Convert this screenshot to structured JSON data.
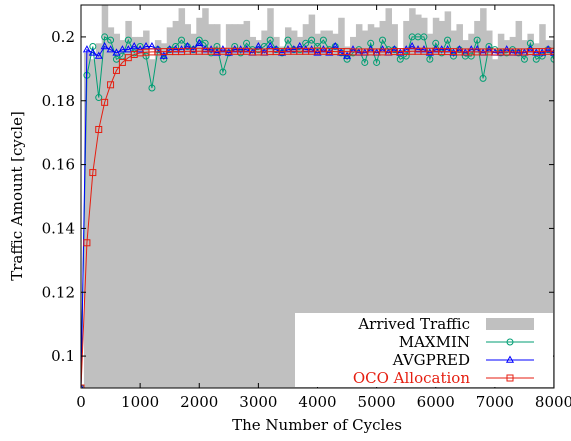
{
  "chart_data": {
    "type": "line",
    "xlabel": "The Number of Cycles",
    "ylabel": "Traffic Amount [cycle]",
    "xlim": [
      0,
      8000
    ],
    "ylim": [
      0.09,
      0.21
    ],
    "x_ticks": [
      0,
      1000,
      2000,
      3000,
      4000,
      5000,
      6000,
      7000,
      8000
    ],
    "y_ticks": [
      0.1,
      0.12,
      0.14,
      0.16,
      0.18,
      0.2
    ],
    "legend_position": "bottom-right",
    "colors": {
      "arrived": "#c0c0c0",
      "maxmin": "#009e73",
      "avgpred": "#0000ff",
      "oco": "#e51e10"
    },
    "series": [
      {
        "name": "Arrived Traffic",
        "style": "bar",
        "x": [
          0,
          100,
          200,
          300,
          400,
          500,
          600,
          700,
          800,
          900,
          1000,
          1100,
          1200,
          1300,
          1400,
          1500,
          1600,
          1700,
          1800,
          1900,
          2000,
          2100,
          2200,
          2300,
          2400,
          2500,
          2600,
          2700,
          2800,
          2900,
          3000,
          3100,
          3200,
          3300,
          3400,
          3500,
          3600,
          3700,
          3800,
          3900,
          4000,
          4100,
          4200,
          4300,
          4400,
          4500,
          4600,
          4700,
          4800,
          4900,
          5000,
          5100,
          5200,
          5300,
          5400,
          5500,
          5600,
          5700,
          5800,
          5900,
          6000,
          6100,
          6200,
          6300,
          6400,
          6500,
          6600,
          6700,
          6800,
          6900,
          7000,
          7100,
          7200,
          7300,
          7400,
          7500,
          7600,
          7700,
          7800,
          7900,
          8000
        ],
        "values": [
          0.09,
          0.195,
          0.193,
          0.198,
          0.21,
          0.203,
          0.201,
          0.199,
          0.205,
          0.2,
          0.2,
          0.202,
          0.193,
          0.199,
          0.198,
          0.203,
          0.205,
          0.209,
          0.204,
          0.201,
          0.206,
          0.209,
          0.204,
          0.204,
          0.196,
          0.204,
          0.204,
          0.204,
          0.205,
          0.2,
          0.199,
          0.202,
          0.209,
          0.2,
          0.197,
          0.203,
          0.202,
          0.2,
          0.204,
          0.207,
          0.201,
          0.202,
          0.202,
          0.201,
          0.206,
          0.197,
          0.2,
          0.204,
          0.202,
          0.204,
          0.203,
          0.205,
          0.209,
          0.204,
          0.196,
          0.205,
          0.209,
          0.207,
          0.206,
          0.201,
          0.206,
          0.205,
          0.208,
          0.202,
          0.204,
          0.199,
          0.201,
          0.205,
          0.209,
          0.202,
          0.193,
          0.201,
          0.199,
          0.2,
          0.205,
          0.199,
          0.201,
          0.198,
          0.204,
          0.199,
          0.199
        ]
      },
      {
        "name": "MAXMIN",
        "style": "line-circle",
        "x": [
          0,
          100,
          200,
          300,
          400,
          500,
          600,
          700,
          800,
          900,
          1000,
          1100,
          1200,
          1300,
          1400,
          1500,
          1600,
          1700,
          1800,
          1900,
          2000,
          2100,
          2200,
          2300,
          2400,
          2500,
          2600,
          2700,
          2800,
          2900,
          3000,
          3100,
          3200,
          3300,
          3400,
          3500,
          3600,
          3700,
          3800,
          3900,
          4000,
          4100,
          4200,
          4300,
          4400,
          4500,
          4600,
          4700,
          4800,
          4900,
          5000,
          5100,
          5200,
          5300,
          5400,
          5500,
          5600,
          5700,
          5800,
          5900,
          6000,
          6100,
          6200,
          6300,
          6400,
          6500,
          6600,
          6700,
          6800,
          6900,
          7000,
          7100,
          7200,
          7300,
          7400,
          7500,
          7600,
          7700,
          7800,
          7900,
          8000
        ],
        "values": [
          0.09,
          0.188,
          0.197,
          0.181,
          0.2,
          0.199,
          0.193,
          0.194,
          0.199,
          0.195,
          0.197,
          0.194,
          0.184,
          0.196,
          0.193,
          0.196,
          0.197,
          0.199,
          0.197,
          0.196,
          0.199,
          0.198,
          0.195,
          0.197,
          0.189,
          0.195,
          0.197,
          0.195,
          0.198,
          0.196,
          0.196,
          0.197,
          0.199,
          0.196,
          0.195,
          0.199,
          0.196,
          0.196,
          0.198,
          0.199,
          0.197,
          0.199,
          0.196,
          0.197,
          0.195,
          0.193,
          0.195,
          0.196,
          0.192,
          0.198,
          0.192,
          0.199,
          0.196,
          0.196,
          0.193,
          0.194,
          0.2,
          0.2,
          0.2,
          0.193,
          0.198,
          0.195,
          0.199,
          0.194,
          0.196,
          0.194,
          0.194,
          0.199,
          0.187,
          0.197,
          0.196,
          0.195,
          0.195,
          0.196,
          0.195,
          0.193,
          0.198,
          0.193,
          0.194,
          0.196,
          0.193
        ]
      },
      {
        "name": "AVGPRED",
        "style": "line-triangle",
        "x": [
          0,
          100,
          200,
          300,
          400,
          500,
          600,
          700,
          800,
          900,
          1000,
          1100,
          1200,
          1300,
          1400,
          1500,
          1600,
          1700,
          1800,
          1900,
          2000,
          2100,
          2200,
          2300,
          2400,
          2500,
          2600,
          2700,
          2800,
          2900,
          3000,
          3100,
          3200,
          3300,
          3400,
          3500,
          3600,
          3700,
          3800,
          3900,
          4000,
          4100,
          4200,
          4300,
          4400,
          4500,
          4600,
          4700,
          4800,
          4900,
          5000,
          5100,
          5200,
          5300,
          5400,
          5500,
          5600,
          5700,
          5800,
          5900,
          6000,
          6100,
          6200,
          6300,
          6400,
          6500,
          6600,
          6700,
          6800,
          6900,
          7000,
          7100,
          7200,
          7300,
          7400,
          7500,
          7600,
          7700,
          7800,
          7900,
          8000
        ],
        "values": [
          0.09,
          0.196,
          0.195,
          0.194,
          0.197,
          0.196,
          0.195,
          0.196,
          0.196,
          0.197,
          0.196,
          0.197,
          0.197,
          0.196,
          0.194,
          0.196,
          0.196,
          0.196,
          0.197,
          0.196,
          0.198,
          0.196,
          0.196,
          0.195,
          0.196,
          0.195,
          0.196,
          0.196,
          0.196,
          0.195,
          0.197,
          0.195,
          0.197,
          0.196,
          0.195,
          0.196,
          0.196,
          0.197,
          0.196,
          0.196,
          0.195,
          0.196,
          0.195,
          0.197,
          0.195,
          0.194,
          0.196,
          0.195,
          0.195,
          0.196,
          0.195,
          0.196,
          0.195,
          0.196,
          0.195,
          0.196,
          0.197,
          0.196,
          0.196,
          0.195,
          0.196,
          0.196,
          0.196,
          0.195,
          0.196,
          0.195,
          0.196,
          0.196,
          0.195,
          0.196,
          0.195,
          0.195,
          0.196,
          0.195,
          0.195,
          0.195,
          0.196,
          0.195,
          0.195,
          0.196,
          0.195
        ]
      },
      {
        "name": "OCO Allocation",
        "style": "line-square",
        "x": [
          0,
          100,
          200,
          300,
          400,
          500,
          600,
          700,
          800,
          900,
          1000,
          1100,
          1200,
          1300,
          1400,
          1500,
          1600,
          1700,
          1800,
          1900,
          2000,
          2100,
          2200,
          2300,
          2400,
          2500,
          2600,
          2700,
          2800,
          2900,
          3000,
          3100,
          3200,
          3300,
          3400,
          3500,
          3600,
          3700,
          3800,
          3900,
          4000,
          4100,
          4200,
          4300,
          4400,
          4500,
          4600,
          4700,
          4800,
          4900,
          5000,
          5100,
          5200,
          5300,
          5400,
          5500,
          5600,
          5700,
          5800,
          5900,
          6000,
          6100,
          6200,
          6300,
          6400,
          6500,
          6600,
          6700,
          6800,
          6900,
          7000,
          7100,
          7200,
          7300,
          7400,
          7500,
          7600,
          7700,
          7800,
          7900,
          8000
        ],
        "values": [
          0.09,
          0.1355,
          0.1575,
          0.171,
          0.1795,
          0.185,
          0.1895,
          0.192,
          0.1935,
          0.1945,
          0.195,
          0.1952,
          0.1953,
          0.1953,
          0.1954,
          0.1954,
          0.1954,
          0.1954,
          0.1955,
          0.1955,
          0.1955,
          0.1955,
          0.1955,
          0.1955,
          0.1955,
          0.1955,
          0.1955,
          0.1955,
          0.1955,
          0.1953,
          0.1953,
          0.1953,
          0.1954,
          0.1954,
          0.1954,
          0.1955,
          0.1955,
          0.1955,
          0.1955,
          0.1955,
          0.1956,
          0.1955,
          0.1955,
          0.1954,
          0.1954,
          0.1954,
          0.1953,
          0.1953,
          0.1953,
          0.1953,
          0.1953,
          0.1953,
          0.1953,
          0.1954,
          0.1954,
          0.1954,
          0.1955,
          0.1955,
          0.1955,
          0.1955,
          0.1955,
          0.1954,
          0.1954,
          0.1954,
          0.1953,
          0.1953,
          0.1953,
          0.1953,
          0.1953,
          0.1953,
          0.1953,
          0.1953,
          0.1953,
          0.1953,
          0.1953,
          0.1953,
          0.1954,
          0.1954,
          0.1954,
          0.1955,
          0.1955
        ]
      }
    ]
  }
}
